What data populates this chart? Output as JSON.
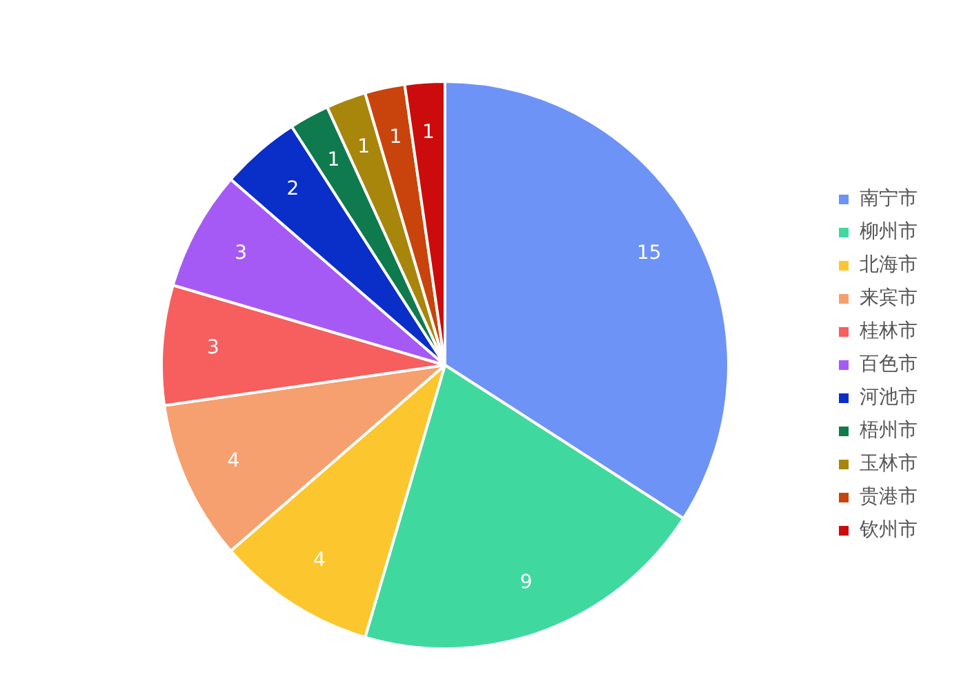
{
  "chart_data": {
    "type": "pie",
    "categories": [
      "南宁市",
      "柳州市",
      "北海市",
      "来宾市",
      "桂林市",
      "百色市",
      "河池市",
      "梧州市",
      "玉林市",
      "贵港市",
      "钦州市"
    ],
    "values": [
      15,
      9,
      4,
      4,
      3,
      3,
      2,
      1,
      1,
      1,
      1
    ],
    "colors": [
      "#6e93f7",
      "#3fd9a0",
      "#fcc62e",
      "#f5a06e",
      "#f75e5e",
      "#a65af5",
      "#0a2ec8",
      "#0e7a4e",
      "#a8860c",
      "#c8440c",
      "#cc0c0c"
    ],
    "data_labels": true,
    "legend": "right"
  }
}
